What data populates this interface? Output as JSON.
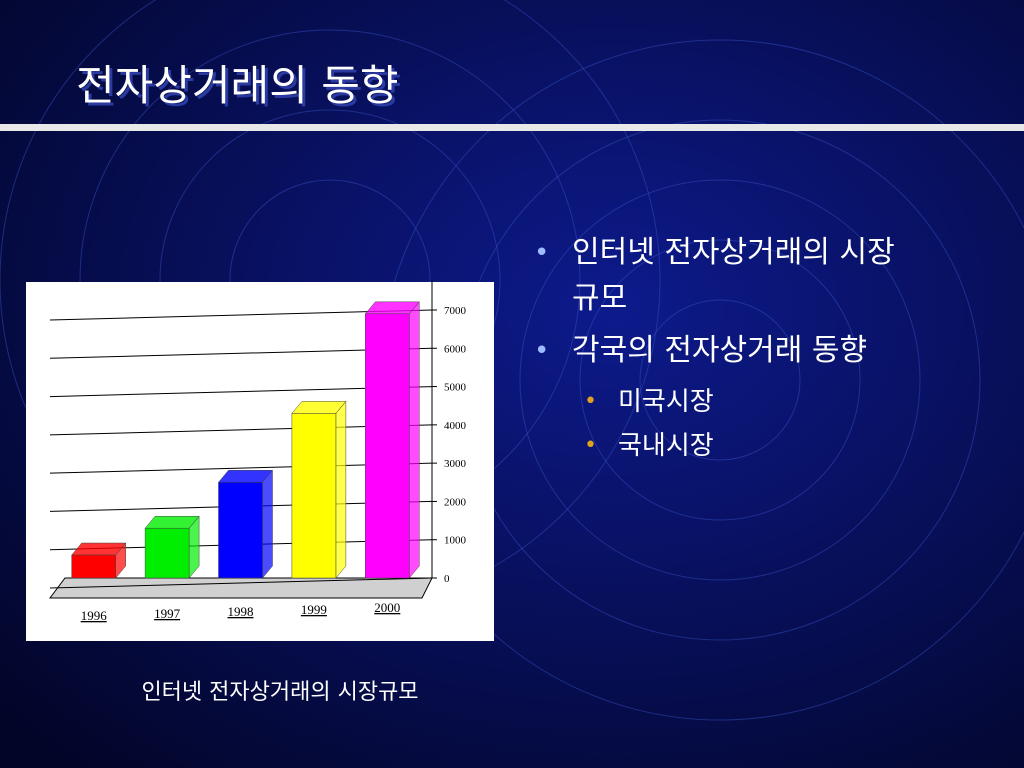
{
  "title": "전자상거래의 동향",
  "bullets": [
    {
      "text": "인터넷 전자상거래의 시장 규모",
      "level": 1
    },
    {
      "text": "각국의 전자상거래 동향",
      "level": 1
    },
    {
      "text": "미국시장",
      "level": 2
    },
    {
      "text": "국내시장",
      "level": 2
    }
  ],
  "caption": "인터넷 전자상거래의 시장규모",
  "chart_data": {
    "type": "bar",
    "categories": [
      "1996",
      "1997",
      "1998",
      "1999",
      "2000"
    ],
    "values": [
      600,
      1300,
      2500,
      4300,
      6900
    ],
    "colors": [
      "#ff0000",
      "#00ee00",
      "#0000ff",
      "#ffff00",
      "#ff00ff"
    ],
    "ylim": [
      0,
      7000
    ],
    "yticks": [
      0,
      1000,
      2000,
      3000,
      4000,
      5000,
      6000,
      7000
    ],
    "grid": true
  }
}
